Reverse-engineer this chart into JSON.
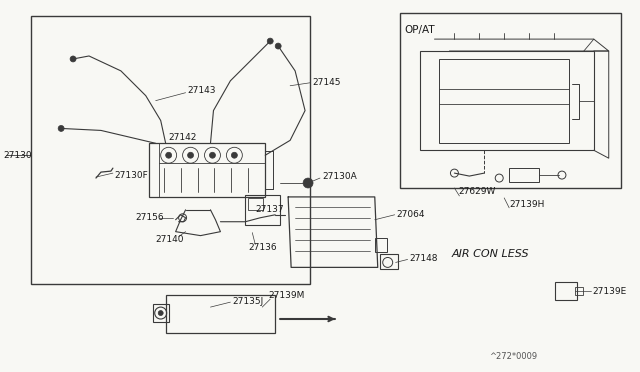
{
  "bg_color": "#f8f8f4",
  "line_color": "#3a3a3a",
  "text_color": "#1a1a1a",
  "footer": "^272*0009",
  "op_at_label": "OP/AT",
  "air_con_less_label": "AIR CON LESS",
  "fig_width": 6.4,
  "fig_height": 3.72,
  "dpi": 100
}
